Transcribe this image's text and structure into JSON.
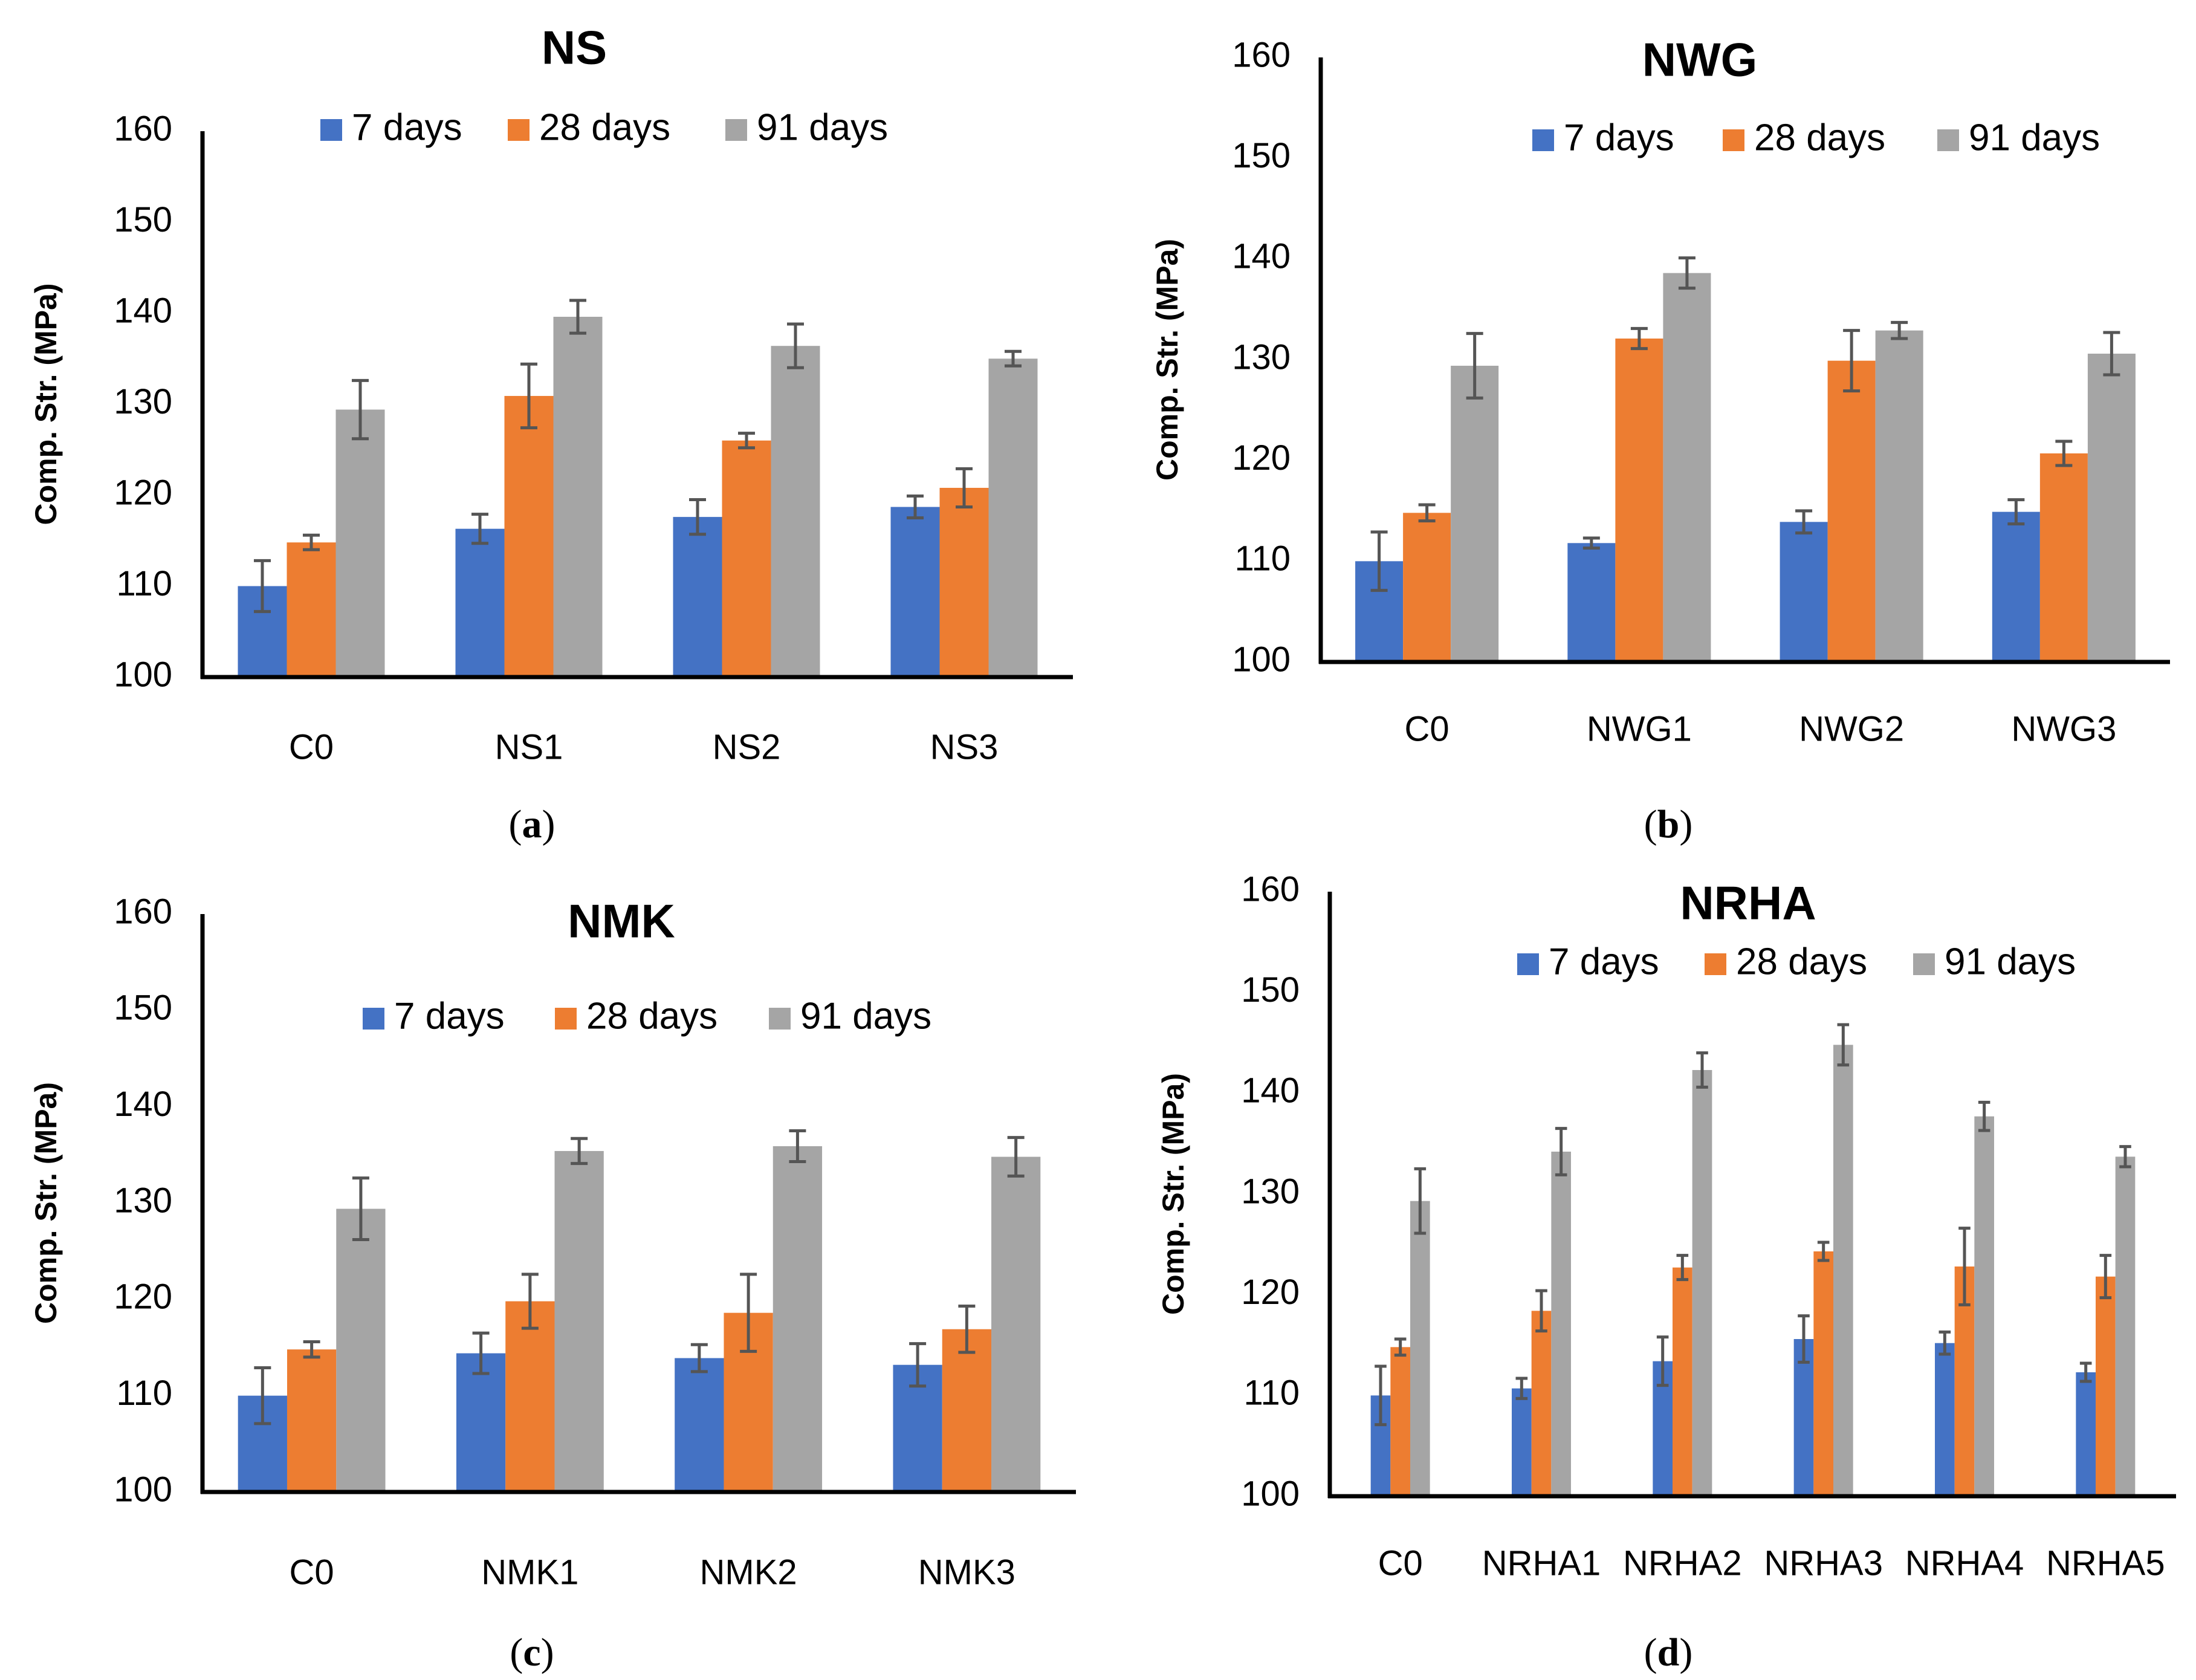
{
  "figure": {
    "legend_labels": [
      "7 days",
      "28 days",
      "91 days"
    ],
    "series_colors": [
      "#4472C4",
      "#ED7D31",
      "#A5A5A5"
    ],
    "error_color": "#555555",
    "ylabel": "Comp. Str. (MPa)"
  },
  "chart_data": [
    {
      "type": "bar",
      "title": "NS",
      "caption_letter": "a",
      "xlabel": "",
      "ylabel": "Comp. Str. (MPa)",
      "ylim": [
        100,
        160
      ],
      "yticks": [
        100,
        110,
        120,
        130,
        140,
        150,
        160
      ],
      "legend_position": "top-center",
      "categories": [
        "C0",
        "NS1",
        "NS2",
        "NS3"
      ],
      "series": [
        {
          "name": "7 days",
          "values": [
            110.0,
            116.3,
            117.6,
            118.7
          ],
          "errors": [
            2.8,
            1.6,
            1.9,
            1.2
          ]
        },
        {
          "name": "28 days",
          "values": [
            114.8,
            130.9,
            126.0,
            120.8
          ],
          "errors": [
            0.8,
            3.5,
            0.8,
            2.1
          ]
        },
        {
          "name": "91 days",
          "values": [
            129.4,
            139.6,
            136.4,
            135.0
          ],
          "errors": [
            3.2,
            1.8,
            2.4,
            0.8
          ]
        }
      ]
    },
    {
      "type": "bar",
      "title": "NWG",
      "caption_letter": "b",
      "xlabel": "",
      "ylabel": "Comp. Str. (MPa)",
      "ylim": [
        100,
        160
      ],
      "yticks": [
        100,
        110,
        120,
        130,
        140,
        150,
        160
      ],
      "legend_position": "top-center",
      "categories": [
        "C0",
        "NWG1",
        "NWG2",
        "NWG3"
      ],
      "series": [
        {
          "name": "7 days",
          "values": [
            110.0,
            111.8,
            113.9,
            114.9
          ],
          "errors": [
            2.9,
            0.5,
            1.1,
            1.2
          ]
        },
        {
          "name": "28 days",
          "values": [
            114.8,
            132.1,
            129.9,
            120.7
          ],
          "errors": [
            0.8,
            1.0,
            3.0,
            1.2
          ]
        },
        {
          "name": "91 days",
          "values": [
            129.4,
            138.6,
            132.9,
            130.6
          ],
          "errors": [
            3.2,
            1.5,
            0.8,
            2.1
          ]
        }
      ]
    },
    {
      "type": "bar",
      "title": "NMK",
      "caption_letter": "c",
      "xlabel": "",
      "ylabel": "Comp. Str. (MPa)",
      "ylim": [
        100,
        160
      ],
      "yticks": [
        100,
        110,
        120,
        130,
        140,
        150,
        160
      ],
      "legend_position": "top-center",
      "categories": [
        "C0",
        "NMK1",
        "NMK2",
        "NMK3"
      ],
      "series": [
        {
          "name": "7 days",
          "values": [
            110.0,
            114.4,
            113.9,
            113.2
          ],
          "errors": [
            2.9,
            2.1,
            1.4,
            2.2
          ]
        },
        {
          "name": "28 days",
          "values": [
            114.8,
            119.8,
            118.6,
            116.9
          ],
          "errors": [
            0.8,
            2.8,
            4.0,
            2.4
          ]
        },
        {
          "name": "91 days",
          "values": [
            129.4,
            135.4,
            135.9,
            134.8
          ],
          "errors": [
            3.2,
            1.3,
            1.6,
            2.0
          ]
        }
      ]
    },
    {
      "type": "bar",
      "title": "NRHA",
      "caption_letter": "d",
      "xlabel": "",
      "ylabel": "Comp. Str. (MPa)",
      "ylim": [
        100,
        160
      ],
      "yticks": [
        100,
        110,
        120,
        130,
        140,
        150,
        160
      ],
      "legend_position": "top-center",
      "categories": [
        "C0",
        "NRHA1",
        "NRHA2",
        "NRHA3",
        "NRHA4",
        "NRHA5"
      ],
      "series": [
        {
          "name": "7 days",
          "values": [
            110.0,
            110.7,
            113.4,
            115.6,
            115.2,
            112.3
          ],
          "errors": [
            2.9,
            1.0,
            2.4,
            2.3,
            1.1,
            0.9
          ]
        },
        {
          "name": "28 days",
          "values": [
            114.8,
            118.4,
            122.7,
            124.3,
            122.8,
            121.8
          ],
          "errors": [
            0.8,
            2.0,
            1.2,
            0.9,
            3.8,
            2.1
          ]
        },
        {
          "name": "91 days",
          "values": [
            129.3,
            134.2,
            142.3,
            144.8,
            137.7,
            133.7
          ],
          "errors": [
            3.2,
            2.3,
            1.7,
            2.0,
            1.4,
            1.0
          ]
        }
      ]
    }
  ]
}
